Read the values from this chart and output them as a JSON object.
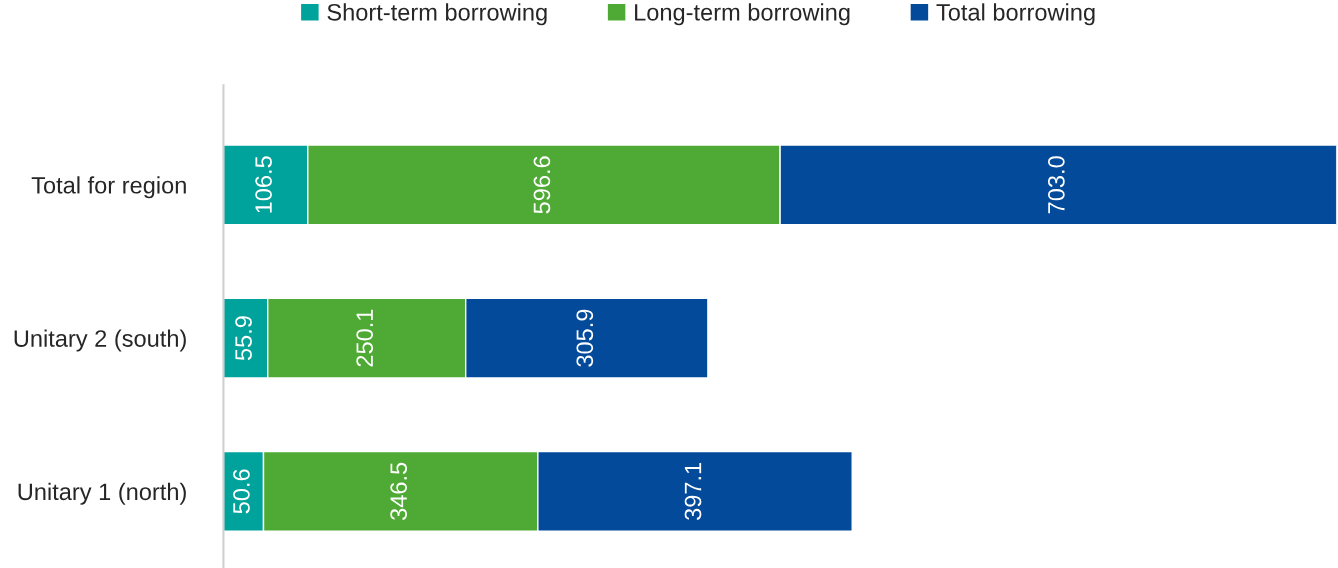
{
  "chart_data": {
    "type": "bar",
    "orientation": "horizontal",
    "stacked": true,
    "categories": [
      "Total for region",
      "Unitary 2 (south)",
      "Unitary 1 (north)"
    ],
    "series": [
      {
        "name": "Short-term borrowing",
        "color": "#00a39b",
        "values": [
          106.5,
          55.9,
          50.6
        ],
        "value_labels": [
          "106.5",
          "55.9",
          "50.6"
        ]
      },
      {
        "name": "Long-term borrowing",
        "color": "#4faa35",
        "values": [
          596.6,
          250.1,
          346.5
        ],
        "value_labels": [
          "596.6",
          "250.1",
          "346.5"
        ]
      },
      {
        "name": "Total borrowing",
        "color": "#034a9b",
        "values": [
          703.0,
          305.9,
          397.1
        ],
        "value_labels": [
          "703.0",
          "305.9",
          "397.1"
        ]
      }
    ],
    "legend": "top",
    "grid": false
  }
}
